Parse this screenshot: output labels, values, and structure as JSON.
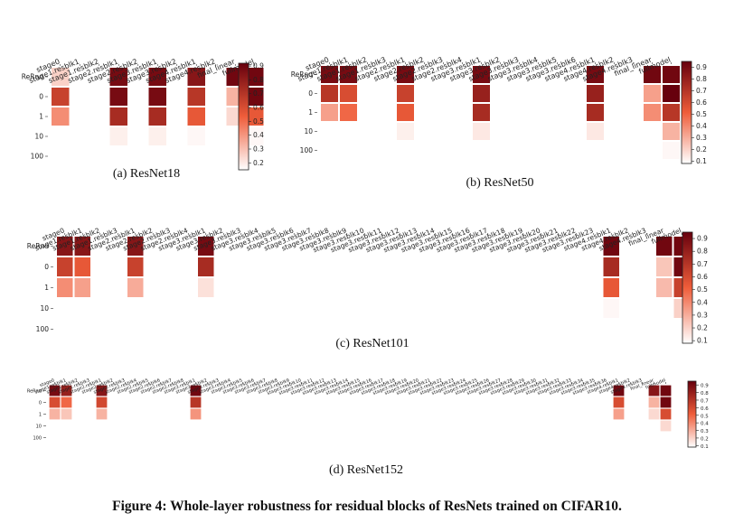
{
  "figure_caption": "Figure 4: Whole-layer robustness for residual blocks of ResNets trained on CIFAR10.",
  "colorscale": {
    "low": "#ffffff",
    "mid": "#ef5d3a",
    "high": "#67000d"
  },
  "chart_data": [
    {
      "type": "heatmap",
      "caption": "(a) ResNet18",
      "rows": [
        "ReRnd",
        "0",
        "1",
        "10",
        "100"
      ],
      "columns": [
        "stage0",
        "stage1.resblk1",
        "stage1.resblk2",
        "stage2.resblk1",
        "stage2.resblk2",
        "stage3.resblk1",
        "stage3.resblk2",
        "stage4.resblk1",
        "stage4.resblk2",
        "final_linear",
        "fullmodel"
      ],
      "values": [
        [
          0.22,
          0.1,
          0.1,
          0.9,
          0.1,
          0.9,
          0.1,
          0.85,
          0.1,
          0.92,
          0.92
        ],
        [
          0.65,
          0.1,
          0.1,
          0.9,
          0.1,
          0.9,
          0.1,
          0.7,
          0.1,
          0.3,
          0.92
        ],
        [
          0.4,
          0.1,
          0.1,
          0.75,
          0.1,
          0.75,
          0.1,
          0.55,
          0.1,
          0.2,
          0.55
        ],
        [
          0.1,
          0.1,
          0.1,
          0.14,
          0.1,
          0.14,
          0.1,
          0.12,
          0.1,
          0.1,
          0.12
        ],
        [
          0.1,
          0.1,
          0.1,
          0.1,
          0.1,
          0.1,
          0.1,
          0.1,
          0.1,
          0.1,
          0.1
        ]
      ],
      "colorbar_ticks": [
        "0.9",
        "0.8",
        "0.7",
        "0.6",
        "0.5",
        "0.4",
        "0.3",
        "0.2"
      ]
    },
    {
      "type": "heatmap",
      "caption": "(b) ResNet50",
      "rows": [
        "ReRnd",
        "0",
        "1",
        "10",
        "100"
      ],
      "columns": [
        "stage0",
        "stage1.resblk1",
        "stage1.resblk2",
        "stage1.resblk3",
        "stage2.resblk1",
        "stage2.resblk2",
        "stage2.resblk3",
        "stage2.resblk4",
        "stage3.resblk1",
        "stage3.resblk2",
        "stage3.resblk3",
        "stage3.resblk4",
        "stage3.resblk5",
        "stage3.resblk6",
        "stage4.resblk1",
        "stage4.resblk2",
        "stage4.resblk3",
        "final_linear",
        "fullmodel"
      ],
      "values": [
        [
          0.9,
          0.9,
          0.1,
          0.1,
          0.9,
          0.1,
          0.1,
          0.1,
          0.9,
          0.1,
          0.1,
          0.1,
          0.1,
          0.1,
          0.9,
          0.1,
          0.1,
          0.92,
          0.92
        ],
        [
          0.7,
          0.6,
          0.1,
          0.1,
          0.65,
          0.1,
          0.1,
          0.1,
          0.8,
          0.1,
          0.1,
          0.1,
          0.1,
          0.1,
          0.8,
          0.1,
          0.1,
          0.35,
          0.95
        ],
        [
          0.35,
          0.5,
          0.1,
          0.1,
          0.55,
          0.1,
          0.1,
          0.1,
          0.75,
          0.1,
          0.1,
          0.1,
          0.1,
          0.1,
          0.75,
          0.1,
          0.1,
          0.4,
          0.7
        ],
        [
          0.1,
          0.1,
          0.1,
          0.1,
          0.14,
          0.1,
          0.1,
          0.1,
          0.16,
          0.1,
          0.1,
          0.1,
          0.1,
          0.1,
          0.16,
          0.1,
          0.1,
          0.1,
          0.3
        ],
        [
          0.1,
          0.1,
          0.1,
          0.1,
          0.1,
          0.1,
          0.1,
          0.1,
          0.1,
          0.1,
          0.1,
          0.1,
          0.1,
          0.1,
          0.1,
          0.1,
          0.1,
          0.1,
          0.12
        ]
      ],
      "colorbar_ticks": [
        "0.9",
        "0.8",
        "0.7",
        "0.6",
        "0.5",
        "0.4",
        "0.3",
        "0.2",
        "0.1"
      ]
    },
    {
      "type": "heatmap",
      "caption": "(c) ResNet101",
      "rows": [
        "ReRnd",
        "0",
        "1",
        "10",
        "100"
      ],
      "columns": [
        "stage0",
        "stage1.resblk1",
        "stage1.resblk2",
        "stage1.resblk3",
        "stage2.resblk1",
        "stage2.resblk2",
        "stage2.resblk3",
        "stage2.resblk4",
        "stage3.resblk1",
        "stage3.resblk2",
        "stage3.resblk3",
        "stage3.resblk4",
        "stage3.resblk5",
        "stage3.resblk6",
        "stage3.resblk7",
        "stage3.resblk8",
        "stage3.resblk9",
        "stage3.resblk10",
        "stage3.resblk11",
        "stage3.resblk12",
        "stage3.resblk13",
        "stage3.resblk14",
        "stage3.resblk15",
        "stage3.resblk16",
        "stage3.resblk17",
        "stage3.resblk18",
        "stage3.resblk19",
        "stage3.resblk20",
        "stage3.resblk21",
        "stage3.resblk22",
        "stage3.resblk23",
        "stage4.resblk1",
        "stage4.resblk2",
        "stage4.resblk3",
        "final_linear",
        "fullmodel"
      ],
      "values": [
        [
          0.85,
          0.85,
          0.1,
          0.1,
          0.85,
          0.1,
          0.1,
          0.1,
          0.9,
          0.1,
          0.1,
          0.1,
          0.1,
          0.1,
          0.1,
          0.1,
          0.1,
          0.1,
          0.1,
          0.1,
          0.1,
          0.1,
          0.1,
          0.1,
          0.1,
          0.1,
          0.1,
          0.1,
          0.1,
          0.1,
          0.1,
          0.92,
          0.1,
          0.1,
          0.92,
          0.92
        ],
        [
          0.65,
          0.55,
          0.1,
          0.1,
          0.65,
          0.1,
          0.1,
          0.1,
          0.75,
          0.1,
          0.1,
          0.1,
          0.1,
          0.1,
          0.1,
          0.1,
          0.1,
          0.1,
          0.1,
          0.1,
          0.1,
          0.1,
          0.1,
          0.1,
          0.1,
          0.1,
          0.1,
          0.1,
          0.1,
          0.1,
          0.1,
          0.75,
          0.1,
          0.1,
          0.25,
          0.92
        ],
        [
          0.4,
          0.35,
          0.1,
          0.1,
          0.32,
          0.1,
          0.1,
          0.1,
          0.18,
          0.1,
          0.1,
          0.1,
          0.1,
          0.1,
          0.1,
          0.1,
          0.1,
          0.1,
          0.1,
          0.1,
          0.1,
          0.1,
          0.1,
          0.1,
          0.1,
          0.1,
          0.1,
          0.1,
          0.1,
          0.1,
          0.1,
          0.55,
          0.1,
          0.1,
          0.28,
          0.65
        ],
        [
          0.1,
          0.1,
          0.1,
          0.1,
          0.1,
          0.1,
          0.1,
          0.1,
          0.1,
          0.1,
          0.1,
          0.1,
          0.1,
          0.1,
          0.1,
          0.1,
          0.1,
          0.1,
          0.1,
          0.1,
          0.1,
          0.1,
          0.1,
          0.1,
          0.1,
          0.1,
          0.1,
          0.1,
          0.1,
          0.1,
          0.1,
          0.12,
          0.1,
          0.1,
          0.1,
          0.22
        ],
        [
          0.1,
          0.1,
          0.1,
          0.1,
          0.1,
          0.1,
          0.1,
          0.1,
          0.1,
          0.1,
          0.1,
          0.1,
          0.1,
          0.1,
          0.1,
          0.1,
          0.1,
          0.1,
          0.1,
          0.1,
          0.1,
          0.1,
          0.1,
          0.1,
          0.1,
          0.1,
          0.1,
          0.1,
          0.1,
          0.1,
          0.1,
          0.1,
          0.1,
          0.1,
          0.1,
          0.1
        ]
      ],
      "colorbar_ticks": [
        "0.9",
        "0.8",
        "0.7",
        "0.6",
        "0.5",
        "0.4",
        "0.3",
        "0.2",
        "0.1"
      ]
    },
    {
      "type": "heatmap",
      "caption": "(d) ResNet152",
      "rows": [
        "ReRnd",
        "0",
        "1",
        "10",
        "100"
      ],
      "columns": [
        "stage0",
        "stage1.resblk1",
        "stage1.resblk2",
        "stage1.resblk3",
        "stage2.resblk1",
        "stage2.resblk2",
        "stage2.resblk3",
        "stage2.resblk4",
        "stage2.resblk5",
        "stage2.resblk6",
        "stage2.resblk7",
        "stage2.resblk8",
        "stage3.resblk1",
        "stage3.resblk2",
        "stage3.resblk3",
        "stage3.resblk4",
        "stage3.resblk5",
        "stage3.resblk6",
        "stage3.resblk7",
        "stage3.resblk8",
        "stage3.resblk9",
        "stage3.resblk10",
        "stage3.resblk11",
        "stage3.resblk12",
        "stage3.resblk13",
        "stage3.resblk14",
        "stage3.resblk15",
        "stage3.resblk16",
        "stage3.resblk17",
        "stage3.resblk18",
        "stage3.resblk19",
        "stage3.resblk20",
        "stage3.resblk21",
        "stage3.resblk22",
        "stage3.resblk23",
        "stage3.resblk24",
        "stage3.resblk25",
        "stage3.resblk26",
        "stage3.resblk27",
        "stage3.resblk28",
        "stage3.resblk29",
        "stage3.resblk30",
        "stage3.resblk31",
        "stage3.resblk32",
        "stage3.resblk33",
        "stage3.resblk34",
        "stage3.resblk35",
        "stage3.resblk36",
        "stage4.resblk1",
        "stage4.resblk2",
        "stage4.resblk3",
        "final_linear",
        "fullmodel"
      ],
      "values": [
        [
          0.9,
          0.8,
          0.1,
          0.1,
          0.85,
          0.1,
          0.1,
          0.1,
          0.1,
          0.1,
          0.1,
          0.1,
          0.92,
          0.1,
          0.1,
          0.1,
          0.1,
          0.1,
          0.1,
          0.1,
          0.1,
          0.1,
          0.1,
          0.1,
          0.1,
          0.1,
          0.1,
          0.1,
          0.1,
          0.1,
          0.1,
          0.1,
          0.1,
          0.1,
          0.1,
          0.1,
          0.1,
          0.1,
          0.1,
          0.1,
          0.1,
          0.1,
          0.1,
          0.1,
          0.1,
          0.1,
          0.1,
          0.1,
          0.92,
          0.1,
          0.1,
          0.85,
          0.92
        ],
        [
          0.6,
          0.5,
          0.1,
          0.1,
          0.62,
          0.1,
          0.1,
          0.1,
          0.1,
          0.1,
          0.1,
          0.1,
          0.7,
          0.1,
          0.1,
          0.1,
          0.1,
          0.1,
          0.1,
          0.1,
          0.1,
          0.1,
          0.1,
          0.1,
          0.1,
          0.1,
          0.1,
          0.1,
          0.1,
          0.1,
          0.1,
          0.1,
          0.1,
          0.1,
          0.1,
          0.1,
          0.1,
          0.1,
          0.1,
          0.1,
          0.1,
          0.1,
          0.1,
          0.1,
          0.1,
          0.1,
          0.1,
          0.1,
          0.6,
          0.1,
          0.1,
          0.3,
          0.92
        ],
        [
          0.3,
          0.25,
          0.1,
          0.1,
          0.3,
          0.1,
          0.1,
          0.1,
          0.1,
          0.1,
          0.1,
          0.1,
          0.38,
          0.1,
          0.1,
          0.1,
          0.1,
          0.1,
          0.1,
          0.1,
          0.1,
          0.1,
          0.1,
          0.1,
          0.1,
          0.1,
          0.1,
          0.1,
          0.1,
          0.1,
          0.1,
          0.1,
          0.1,
          0.1,
          0.1,
          0.1,
          0.1,
          0.1,
          0.1,
          0.1,
          0.1,
          0.1,
          0.1,
          0.1,
          0.1,
          0.1,
          0.1,
          0.1,
          0.35,
          0.1,
          0.1,
          0.2,
          0.6
        ],
        [
          0.1,
          0.1,
          0.1,
          0.1,
          0.1,
          0.1,
          0.1,
          0.1,
          0.1,
          0.1,
          0.1,
          0.1,
          0.1,
          0.1,
          0.1,
          0.1,
          0.1,
          0.1,
          0.1,
          0.1,
          0.1,
          0.1,
          0.1,
          0.1,
          0.1,
          0.1,
          0.1,
          0.1,
          0.1,
          0.1,
          0.1,
          0.1,
          0.1,
          0.1,
          0.1,
          0.1,
          0.1,
          0.1,
          0.1,
          0.1,
          0.1,
          0.1,
          0.1,
          0.1,
          0.1,
          0.1,
          0.1,
          0.1,
          0.1,
          0.1,
          0.1,
          0.1,
          0.2
        ],
        [
          0.1,
          0.1,
          0.1,
          0.1,
          0.1,
          0.1,
          0.1,
          0.1,
          0.1,
          0.1,
          0.1,
          0.1,
          0.1,
          0.1,
          0.1,
          0.1,
          0.1,
          0.1,
          0.1,
          0.1,
          0.1,
          0.1,
          0.1,
          0.1,
          0.1,
          0.1,
          0.1,
          0.1,
          0.1,
          0.1,
          0.1,
          0.1,
          0.1,
          0.1,
          0.1,
          0.1,
          0.1,
          0.1,
          0.1,
          0.1,
          0.1,
          0.1,
          0.1,
          0.1,
          0.1,
          0.1,
          0.1,
          0.1,
          0.1,
          0.1,
          0.1,
          0.1,
          0.1
        ]
      ],
      "colorbar_ticks": [
        "0.9",
        "0.8",
        "0.7",
        "0.6",
        "0.5",
        "0.4",
        "0.3",
        "0.2",
        "0.1"
      ]
    }
  ]
}
